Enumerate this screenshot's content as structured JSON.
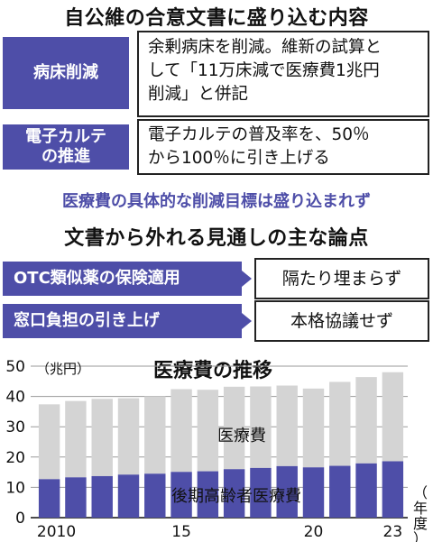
{
  "heading1": "自公維の合意文書に盛り込む内容",
  "items1": [
    {
      "tag_lines": [
        "病床削減"
      ],
      "text_lines": [
        "余剰病床を削減。維新の試算と",
        "して「11万床減で医療費1兆円",
        "削減」と併記"
      ]
    },
    {
      "tag_lines": [
        "電子カルテ",
        "の推進"
      ],
      "text_lines": [
        "電子カルテの普及率を、50％",
        "から100％に引き上げる"
      ]
    }
  ],
  "note": "医療費の具体的な削減目標は盛り込まれず",
  "heading2": "文書から外れる見通しの主な論点",
  "items2": [
    {
      "tag": "OTC類似薬の保険適用",
      "value": "隔たり埋まらず"
    },
    {
      "tag": "窓口負担の引き上げ",
      "value": "本格協議せず"
    }
  ],
  "chart_data": {
    "type": "bar",
    "title": "医療費の推移",
    "ylabel": "（兆円）",
    "xlabel": "（年度）",
    "ylim": [
      0,
      50
    ],
    "yticks": [
      0,
      10,
      20,
      30,
      40,
      50
    ],
    "categories": [
      "2010",
      "2011",
      "2012",
      "2013",
      "2014",
      "2015",
      "2016",
      "2017",
      "2018",
      "2019",
      "2020",
      "2021",
      "2022",
      "2023"
    ],
    "xtick_labels": [
      "2010",
      "",
      "",
      "",
      "",
      "15",
      "",
      "",
      "",
      "",
      "20",
      "",
      "",
      "23"
    ],
    "stacked": true,
    "series": [
      {
        "name": "後期高齢者医療費",
        "color": "#4e4ea8",
        "values": [
          12.7,
          13.3,
          13.7,
          14.2,
          14.5,
          15.1,
          15.3,
          16.0,
          16.4,
          17.0,
          16.6,
          17.1,
          17.9,
          18.6
        ]
      },
      {
        "name": "医療費",
        "color": "#d4d4d4",
        "values": [
          24.7,
          25.2,
          25.5,
          25.2,
          25.5,
          27.3,
          26.9,
          27.2,
          26.9,
          26.6,
          26.0,
          27.7,
          28.5,
          29.4
        ]
      }
    ],
    "totals": [
      37.4,
      38.5,
      39.2,
      39.4,
      40.0,
      42.4,
      42.2,
      43.2,
      43.3,
      43.6,
      42.6,
      44.8,
      46.4,
      48.0
    ],
    "colors": {
      "accent": "#4e4ea8",
      "bar_top": "#d4d4d4",
      "grid": "#9a9a9a"
    }
  }
}
